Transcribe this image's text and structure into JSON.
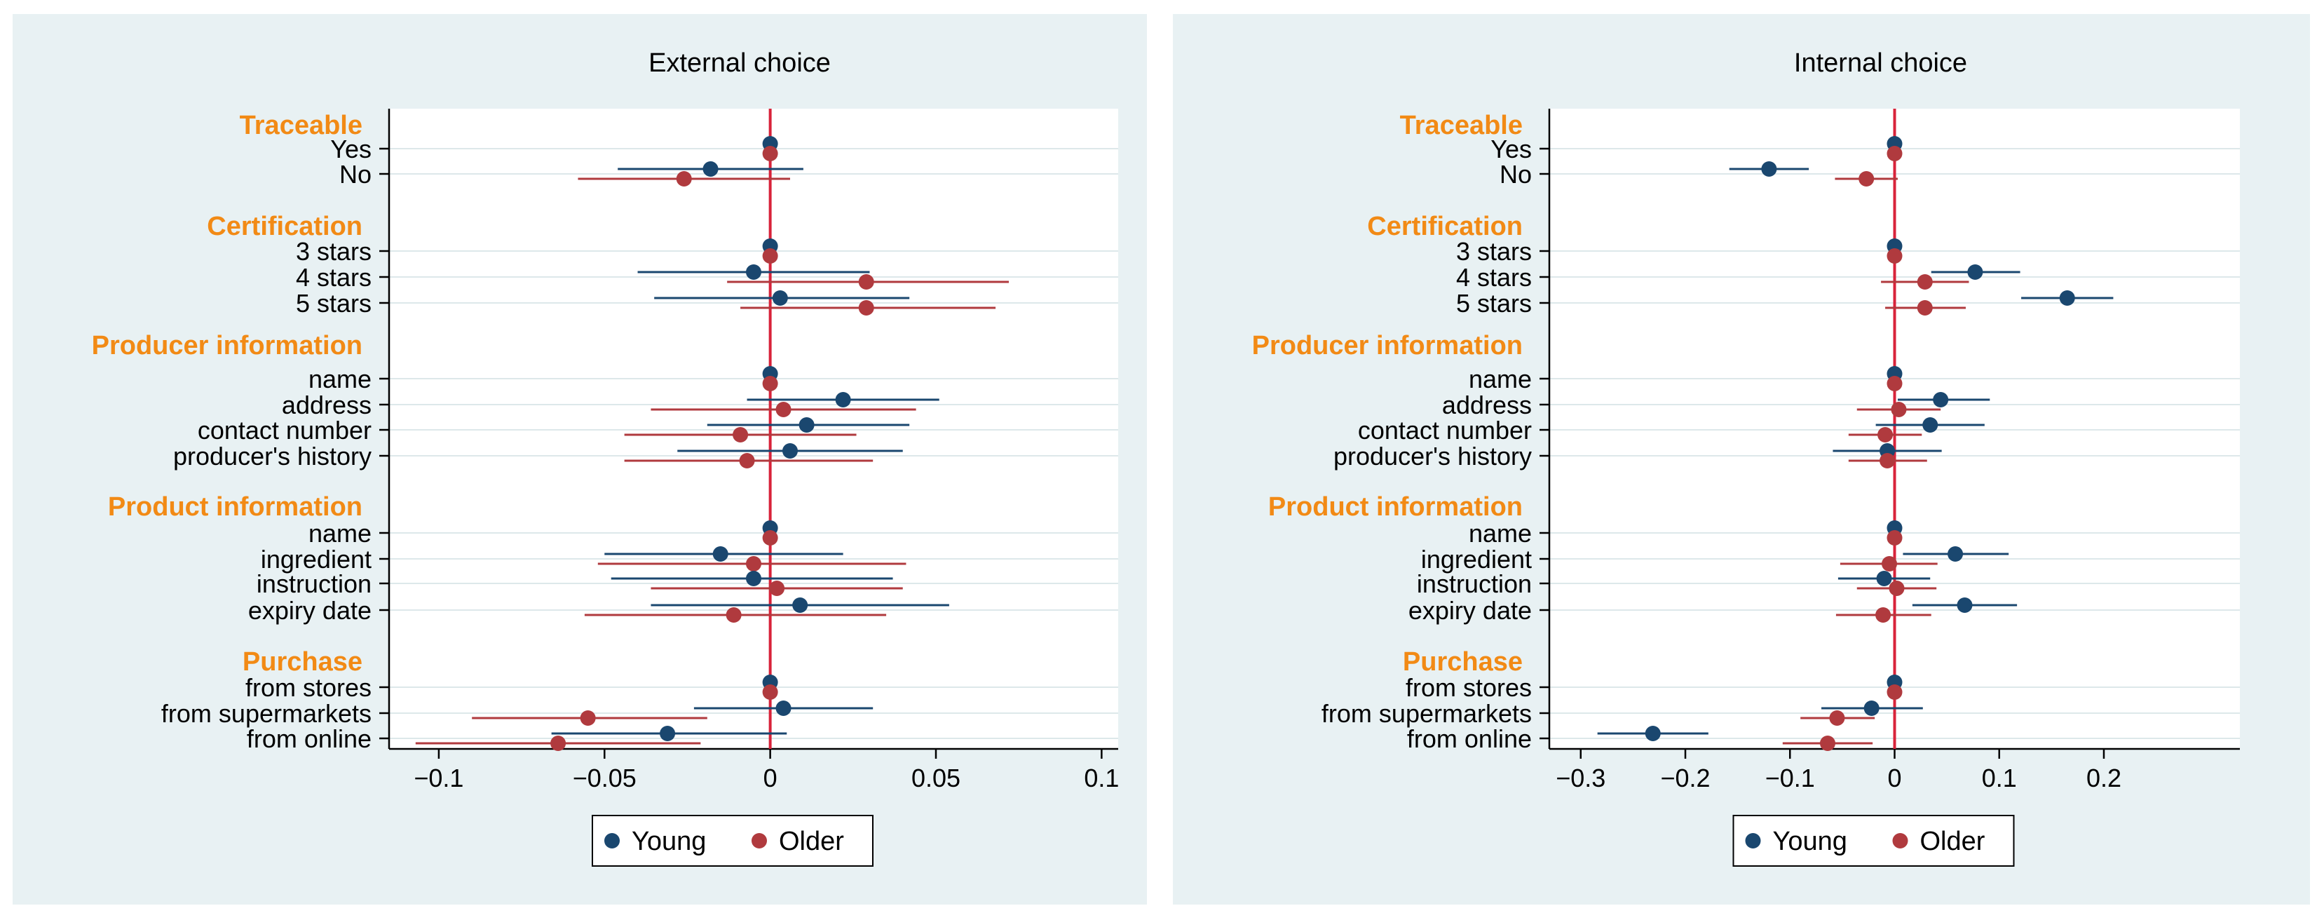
{
  "colors": {
    "panel_bg": "#e8f1f3",
    "plot_bg": "#ffffff",
    "young": "#1a476f",
    "older": "#b03a3e",
    "zero_line": "#d8233a",
    "group_header": "#f28a15",
    "text": "#000000",
    "grid": "#dde8ea"
  },
  "legend": {
    "young_label": "Young",
    "older_label": "Older"
  },
  "chart_data": [
    {
      "type": "coefficient-plot",
      "title": "External choice",
      "xlim": [
        -0.115,
        0.105
      ],
      "xticks": [
        -0.1,
        -0.05,
        0,
        0.05,
        0.1
      ],
      "xtick_labels": [
        "−0.1",
        "−0.05",
        "0",
        "0.05",
        "0.1"
      ],
      "groups": [
        {
          "header": "Traceable",
          "rows": [
            {
              "label": "Yes",
              "young": [
                0,
                0,
                0
              ],
              "older": [
                0,
                0,
                0
              ]
            },
            {
              "label": "No",
              "young": [
                -0.018,
                -0.046,
                0.01
              ],
              "older": [
                -0.026,
                -0.058,
                0.006
              ]
            }
          ]
        },
        {
          "header": "Certification",
          "rows": [
            {
              "label": "3 stars",
              "young": [
                0,
                0,
                0
              ],
              "older": [
                0,
                0,
                0
              ]
            },
            {
              "label": "4 stars",
              "young": [
                -0.005,
                -0.04,
                0.03
              ],
              "older": [
                0.029,
                -0.013,
                0.072
              ]
            },
            {
              "label": "5 stars",
              "young": [
                0.003,
                -0.035,
                0.042
              ],
              "older": [
                0.029,
                -0.009,
                0.068
              ]
            }
          ]
        },
        {
          "header": "Producer  information",
          "rows": [
            {
              "label": "name",
              "young": [
                0,
                0,
                0
              ],
              "older": [
                0,
                0,
                0
              ]
            },
            {
              "label": "address",
              "young": [
                0.022,
                -0.007,
                0.051
              ],
              "older": [
                0.004,
                -0.036,
                0.044
              ]
            },
            {
              "label": "contact number",
              "young": [
                0.011,
                -0.019,
                0.042
              ],
              "older": [
                -0.009,
                -0.044,
                0.026
              ]
            },
            {
              "label": "producer's history",
              "young": [
                0.006,
                -0.028,
                0.04
              ],
              "older": [
                -0.007,
                -0.044,
                0.031
              ]
            }
          ]
        },
        {
          "header": "Product information",
          "rows": [
            {
              "label": "name",
              "young": [
                0,
                0,
                0
              ],
              "older": [
                0,
                0,
                0
              ]
            },
            {
              "label": "ingredient",
              "young": [
                -0.015,
                -0.05,
                0.022
              ],
              "older": [
                -0.005,
                -0.052,
                0.041
              ]
            },
            {
              "label": "instruction",
              "young": [
                -0.005,
                -0.048,
                0.037
              ],
              "older": [
                0.002,
                -0.036,
                0.04
              ]
            },
            {
              "label": "expiry date",
              "young": [
                0.009,
                -0.036,
                0.054
              ],
              "older": [
                -0.011,
                -0.056,
                0.035
              ]
            }
          ]
        },
        {
          "header": "Purchase",
          "rows": [
            {
              "label": "from stores",
              "young": [
                0,
                0,
                0
              ],
              "older": [
                0,
                0,
                0
              ]
            },
            {
              "label": "from supermarkets",
              "young": [
                0.004,
                -0.023,
                0.031
              ],
              "older": [
                -0.055,
                -0.09,
                -0.019
              ]
            },
            {
              "label": "from online",
              "young": [
                -0.031,
                -0.066,
                0.005
              ],
              "older": [
                -0.064,
                -0.107,
                -0.021
              ]
            }
          ]
        }
      ]
    },
    {
      "type": "coefficient-plot",
      "title": "Internal choice",
      "xlim": [
        -0.33,
        0.33
      ],
      "xticks": [
        -0.3,
        -0.2,
        -0.1,
        0,
        0.1,
        0.2
      ],
      "xtick_labels": [
        "−0.3",
        "−0.2",
        "−0.1",
        "0",
        "0.1",
        "0.2"
      ],
      "groups": [
        {
          "header": "Traceable",
          "rows": [
            {
              "label": "Yes",
              "young": [
                0,
                0,
                0
              ],
              "older": [
                0,
                0,
                0
              ]
            },
            {
              "label": "No",
              "young": [
                -0.12,
                -0.158,
                -0.082
              ],
              "older": [
                -0.027,
                -0.057,
                0.003
              ]
            }
          ]
        },
        {
          "header": "Certification",
          "rows": [
            {
              "label": "3 stars",
              "young": [
                0,
                0,
                0
              ],
              "older": [
                0,
                0,
                0
              ]
            },
            {
              "label": "4 stars",
              "young": [
                0.077,
                0.035,
                0.12
              ],
              "older": [
                0.029,
                -0.013,
                0.071
              ]
            },
            {
              "label": "5 stars",
              "young": [
                0.165,
                0.121,
                0.209
              ],
              "older": [
                0.029,
                -0.009,
                0.068
              ]
            }
          ]
        },
        {
          "header": "Producer information",
          "rows": [
            {
              "label": "name",
              "young": [
                0,
                0,
                0
              ],
              "older": [
                0,
                0,
                0
              ]
            },
            {
              "label": "address",
              "young": [
                0.044,
                0.003,
                0.091
              ],
              "older": [
                0.004,
                -0.036,
                0.044
              ]
            },
            {
              "label": "contact number",
              "young": [
                0.034,
                -0.018,
                0.086
              ],
              "older": [
                -0.009,
                -0.044,
                0.026
              ]
            },
            {
              "label": "producer's history",
              "young": [
                -0.007,
                -0.059,
                0.045
              ],
              "older": [
                -0.007,
                -0.044,
                0.031
              ]
            }
          ]
        },
        {
          "header": "Product information",
          "rows": [
            {
              "label": "name",
              "young": [
                0,
                0,
                0
              ],
              "older": [
                0,
                0,
                0
              ]
            },
            {
              "label": "ingredient",
              "young": [
                0.058,
                0.008,
                0.109
              ],
              "older": [
                -0.005,
                -0.052,
                0.041
              ]
            },
            {
              "label": "instruction",
              "young": [
                -0.01,
                -0.054,
                0.034
              ],
              "older": [
                0.002,
                -0.036,
                0.04
              ]
            },
            {
              "label": "expiry date",
              "young": [
                0.067,
                0.017,
                0.117
              ],
              "older": [
                -0.011,
                -0.056,
                0.035
              ]
            }
          ]
        },
        {
          "header": "Purchase",
          "rows": [
            {
              "label": "from stores",
              "young": [
                0,
                0,
                0
              ],
              "older": [
                0,
                0,
                0
              ]
            },
            {
              "label": "from supermarkets",
              "young": [
                -0.022,
                -0.07,
                0.027
              ],
              "older": [
                -0.055,
                -0.09,
                -0.019
              ]
            },
            {
              "label": "from online",
              "young": [
                -0.231,
                -0.284,
                -0.178
              ],
              "older": [
                -0.064,
                -0.107,
                -0.021
              ]
            }
          ]
        }
      ]
    }
  ]
}
